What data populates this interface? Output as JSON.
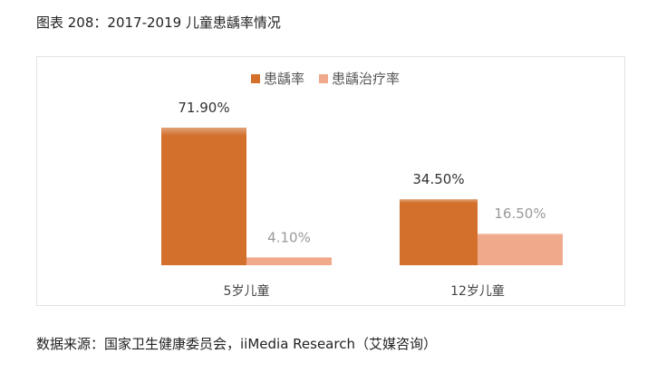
{
  "header": {
    "title": "图表 208：2017-2019 儿童患龋率情况"
  },
  "footer": {
    "source": "数据来源：国家卫生健康委员会，iiMedia Research（艾媒咨询）"
  },
  "chart_data": {
    "type": "bar",
    "categories": [
      "5岁儿童",
      "12岁儿童"
    ],
    "series": [
      {
        "name": "患龋率",
        "values": [
          71.9,
          34.5
        ],
        "labels": [
          "71.90%",
          "34.50%"
        ],
        "color": "#d2702c"
      },
      {
        "name": "患龋治疗率",
        "values": [
          4.1,
          16.5
        ],
        "labels": [
          "4.10%",
          "16.50%"
        ],
        "color": "#f0a98a"
      }
    ],
    "legend": "top-center",
    "grid": false,
    "ylim": [
      0,
      80
    ]
  }
}
